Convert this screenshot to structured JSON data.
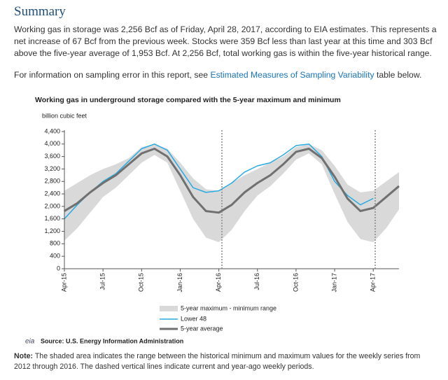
{
  "heading": "Summary",
  "paragraph1": "Working gas in storage was 2,256 Bcf as of Friday, April 28, 2017, according to EIA estimates. This represents a net increase of 67 Bcf from the previous week. Stocks were 359 Bcf less than last year at this time and 303 Bcf above the five-year average of 1,953 Bcf. At 2,256 Bcf, total working gas is within the five-year historical range.",
  "paragraph2": {
    "before": "For information on sampling error in this report, see ",
    "link": "Estimated Measures of Sampling Variability",
    "after": " table below."
  },
  "chart_data": {
    "type": "line",
    "title": "Working gas in underground storage compared with the 5-year maximum and minimum",
    "y_label": "billion cubic feet",
    "categories": [
      "Apr-15",
      null,
      null,
      "Jul-15",
      null,
      null,
      "Oct-15",
      null,
      null,
      "Jan-16",
      null,
      null,
      "Apr-16",
      null,
      null,
      "Jul-16",
      null,
      null,
      "Oct-16",
      null,
      null,
      "Jan-17",
      null,
      null,
      "Apr-17",
      null,
      null
    ],
    "ylim": [
      0,
      4400
    ],
    "yticks": [
      0,
      400,
      800,
      {
        "value": 1200,
        "label": "1,200"
      },
      {
        "value": 1600,
        "label": "1,600"
      },
      {
        "value": 2000,
        "label": "2,000"
      },
      {
        "value": 2400,
        "label": "2,400"
      },
      {
        "value": 2800,
        "label": "2,800"
      },
      {
        "value": 3200,
        "label": "3,200"
      },
      {
        "value": 3600,
        "label": "3,600"
      },
      {
        "value": 4000,
        "label": "4,000"
      },
      {
        "value": 4400,
        "label": "4,400"
      }
    ],
    "grid": false,
    "band": {
      "name": "5-year maximum - minimum range",
      "color": "#d9d9d9",
      "upper": [
        2500,
        2750,
        3000,
        3200,
        3350,
        3550,
        3900,
        4000,
        3850,
        3400,
        2900,
        2550,
        2500,
        2750,
        3000,
        3200,
        3400,
        3600,
        3900,
        4000,
        3800,
        3300,
        2700,
        2450,
        2500,
        2800,
        3100
      ],
      "lower": [
        900,
        1300,
        1800,
        2300,
        2600,
        3000,
        3400,
        3650,
        3400,
        2500,
        1600,
        1000,
        850,
        1250,
        1850,
        2350,
        2650,
        3050,
        3500,
        3700,
        3350,
        2400,
        1500,
        950,
        850,
        1300,
        1900
      ]
    },
    "series": [
      {
        "name": "Lower 48",
        "color": "#29abe2",
        "width": 1.5,
        "values": [
          1600,
          2050,
          2450,
          2800,
          3050,
          3450,
          3850,
          4000,
          3800,
          3200,
          2600,
          2450,
          2500,
          2750,
          3100,
          3300,
          3400,
          3650,
          3950,
          4000,
          3600,
          2800,
          2350,
          2050,
          2256,
          null,
          null
        ]
      },
      {
        "name": "5-year average",
        "color": "#707070",
        "width": 3,
        "values": [
          1850,
          2100,
          2450,
          2750,
          3000,
          3350,
          3700,
          3850,
          3600,
          3000,
          2300,
          1850,
          1800,
          2050,
          2450,
          2750,
          3000,
          3350,
          3750,
          3850,
          3550,
          2950,
          2250,
          1850,
          1950,
          2300,
          2650
        ]
      }
    ],
    "source_logo": "eia",
    "source": "Source:  U.S. Energy Information Administration"
  },
  "note": {
    "label": "Note:",
    "text": " The shaded area indicates the range between the historical minimum and maximum values for the weekly series from 2012 through 2016. The dashed vertical lines indicate current and year-ago weekly periods."
  }
}
